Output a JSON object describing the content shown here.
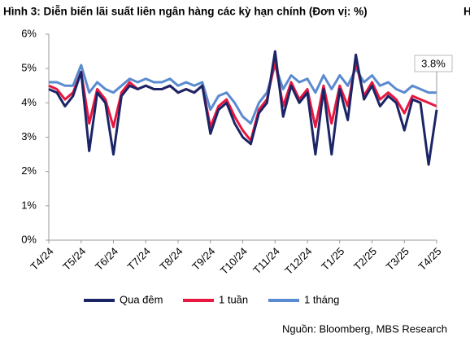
{
  "chart_data": {
    "type": "line",
    "title": "Hình 3: Diễn biến lãi suất liên ngân hàng các kỳ hạn chính (Đơn vị: %)",
    "side_text": "H",
    "annotation": "3.8%",
    "source": "Nguồn: Bloomberg, MBS Research",
    "categories": [
      "T4/24",
      null,
      null,
      null,
      "T5/24",
      null,
      null,
      null,
      "T6/24",
      null,
      null,
      null,
      "T7/24",
      null,
      null,
      null,
      "T8/24",
      null,
      null,
      null,
      "T9/24",
      null,
      null,
      null,
      "T10/24",
      null,
      null,
      null,
      "T11/24",
      null,
      null,
      null,
      "T12/24",
      null,
      null,
      null,
      "T1/25",
      null,
      null,
      null,
      "T2/25",
      null,
      null,
      null,
      "T3/25",
      null,
      null,
      null,
      "T4/25"
    ],
    "series": [
      {
        "name": "Qua đêm",
        "color": "#1b2566",
        "values": [
          4.4,
          4.3,
          3.9,
          4.2,
          4.9,
          2.6,
          4.3,
          4.0,
          2.5,
          4.2,
          4.5,
          4.4,
          4.5,
          4.4,
          4.4,
          4.5,
          4.3,
          4.4,
          4.3,
          4.5,
          3.1,
          3.8,
          4.0,
          3.4,
          3.0,
          2.8,
          3.7,
          4.0,
          5.5,
          3.6,
          4.5,
          4.0,
          4.3,
          2.5,
          4.4,
          2.5,
          4.4,
          3.5,
          5.4,
          4.1,
          4.5,
          3.9,
          4.2,
          4.0,
          3.2,
          4.1,
          4.0,
          2.2,
          3.8
        ]
      },
      {
        "name": "1 tuần",
        "color": "#e8173f",
        "values": [
          4.5,
          4.4,
          4.1,
          4.3,
          4.9,
          3.4,
          4.4,
          4.1,
          3.3,
          4.3,
          4.6,
          4.4,
          4.5,
          4.4,
          4.4,
          4.5,
          4.3,
          4.4,
          4.3,
          4.5,
          3.3,
          3.9,
          4.1,
          3.6,
          3.2,
          2.9,
          3.8,
          4.1,
          5.2,
          3.9,
          4.6,
          4.1,
          4.4,
          3.3,
          4.5,
          3.4,
          4.5,
          3.9,
          5.2,
          4.2,
          4.6,
          4.1,
          4.3,
          4.1,
          3.7,
          4.2,
          4.1,
          4.0,
          3.9
        ]
      },
      {
        "name": "1 tháng",
        "color": "#5a8ad0",
        "values": [
          4.6,
          4.6,
          4.5,
          4.5,
          5.1,
          4.3,
          4.6,
          4.4,
          4.3,
          4.5,
          4.7,
          4.6,
          4.7,
          4.6,
          4.6,
          4.7,
          4.5,
          4.6,
          4.5,
          4.6,
          3.8,
          4.2,
          4.3,
          4.0,
          3.6,
          3.4,
          4.0,
          4.3,
          5.1,
          4.4,
          4.8,
          4.6,
          4.7,
          4.3,
          4.8,
          4.4,
          4.8,
          4.5,
          5.0,
          4.6,
          4.8,
          4.5,
          4.6,
          4.4,
          4.3,
          4.5,
          4.4,
          4.3,
          4.3
        ]
      }
    ],
    "ylim": [
      0,
      6
    ],
    "yticks": [
      {
        "value": 0,
        "label": "0%"
      },
      {
        "value": 1,
        "label": "1%"
      },
      {
        "value": 2,
        "label": "2%"
      },
      {
        "value": 3,
        "label": "3%"
      },
      {
        "value": 4,
        "label": "4%"
      },
      {
        "value": 5,
        "label": "5%"
      },
      {
        "value": 6,
        "label": "6%"
      }
    ]
  }
}
